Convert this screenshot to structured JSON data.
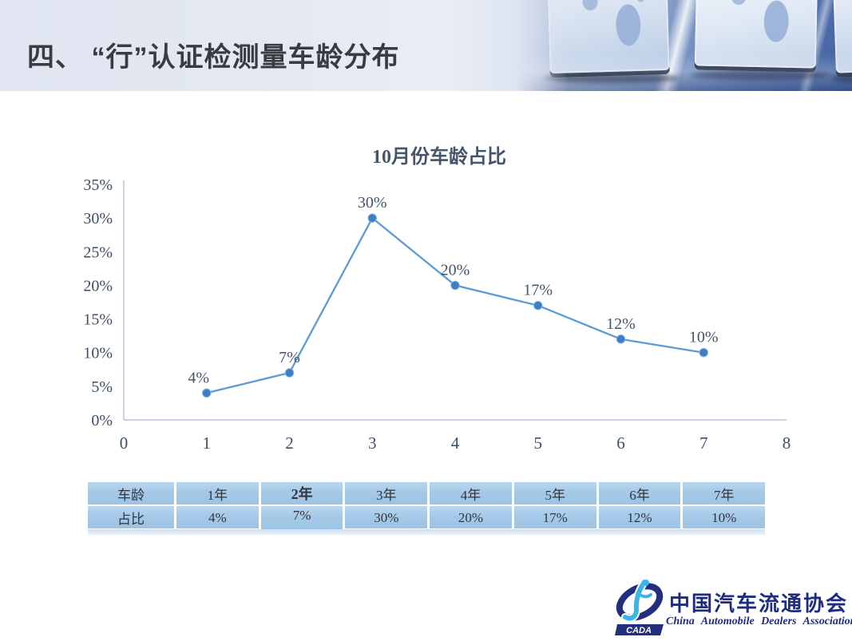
{
  "slide": {
    "title": "四、 “行”认证检测量车龄分布"
  },
  "chart_data": {
    "type": "line",
    "title": "10月份车龄占比",
    "x": [
      1,
      2,
      3,
      4,
      5,
      6,
      7
    ],
    "values": [
      4,
      7,
      30,
      20,
      17,
      12,
      10
    ],
    "point_labels": [
      "4%",
      "7%",
      "30%",
      "20%",
      "17%",
      "12%",
      "10%"
    ],
    "xlim": [
      0,
      8
    ],
    "x_tick_labels": [
      "0",
      "1",
      "2",
      "3",
      "4",
      "5",
      "6",
      "7",
      "8"
    ],
    "ylim": [
      0,
      35
    ],
    "y_tick_values": [
      0,
      5,
      10,
      15,
      20,
      25,
      30,
      35
    ],
    "y_tick_labels": [
      "0%",
      "5%",
      "10%",
      "15%",
      "20%",
      "25%",
      "30%",
      "35%"
    ],
    "grid": false,
    "legend": "none",
    "line_color": "#5b9bd5",
    "marker_color": "#3f7ec6",
    "axis_color": "#b5c4d8"
  },
  "table": {
    "header_row": [
      "车龄",
      "1年",
      "2年",
      "3年",
      "4年",
      "5年",
      "6年",
      "7年"
    ],
    "value_row": [
      "占比",
      "4%",
      "7%",
      "30%",
      "20%",
      "17%",
      "12%",
      "10%"
    ]
  },
  "logo": {
    "badge": "CADA",
    "cn": "中国汽车流通协会",
    "en": "China Automobile Dealers Association"
  },
  "colors": {
    "title_text": "#3a3b41",
    "chart_text": "#44546a",
    "table_cell": "#9cc3e5",
    "logo_navy": "#1d2c80",
    "logo_cyan": "#3db4e8"
  }
}
